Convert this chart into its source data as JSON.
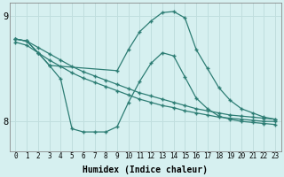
{
  "background_color": "#d6f0f0",
  "line_color": "#2d7d74",
  "grid_color": "#c0dede",
  "xlabel": "Humidex (Indice chaleur)",
  "ylim": [
    7.72,
    9.12
  ],
  "xlim": [
    -0.5,
    23.5
  ],
  "yticks": [
    8,
    9
  ],
  "xticks": [
    0,
    1,
    2,
    3,
    4,
    5,
    6,
    7,
    8,
    9,
    10,
    11,
    12,
    13,
    14,
    15,
    16,
    17,
    18,
    19,
    20,
    21,
    22,
    23
  ],
  "series": [
    {
      "x": [
        0,
        1,
        2,
        3,
        4,
        5,
        6,
        7,
        8,
        9,
        10,
        11,
        12,
        13,
        14,
        15,
        16,
        17,
        18,
        19,
        20,
        21,
        22,
        23
      ],
      "y": [
        8.78,
        8.76,
        8.7,
        8.64,
        8.58,
        8.52,
        8.47,
        8.43,
        8.39,
        8.35,
        8.31,
        8.27,
        8.24,
        8.21,
        8.18,
        8.15,
        8.12,
        8.1,
        8.08,
        8.06,
        8.05,
        8.04,
        8.03,
        8.02
      ]
    },
    {
      "x": [
        0,
        1,
        2,
        3,
        4,
        5,
        6,
        7,
        8,
        9,
        10,
        11,
        12,
        13,
        14,
        15,
        16,
        17,
        18,
        19,
        20,
        21,
        22,
        23
      ],
      "y": [
        8.75,
        8.72,
        8.65,
        8.58,
        8.52,
        8.46,
        8.41,
        8.37,
        8.33,
        8.29,
        8.25,
        8.21,
        8.18,
        8.15,
        8.13,
        8.1,
        8.08,
        8.06,
        8.04,
        8.03,
        8.02,
        8.01,
        8.0,
        8.0
      ]
    },
    {
      "x": [
        0,
        1,
        2,
        3,
        4,
        5,
        6,
        7,
        8,
        9,
        10,
        11,
        12,
        13,
        14,
        15,
        16,
        17,
        18,
        19,
        20,
        21,
        22,
        23
      ],
      "y": [
        8.78,
        8.76,
        8.65,
        8.53,
        8.4,
        7.93,
        7.9,
        7.9,
        7.9,
        7.95,
        8.18,
        8.38,
        8.55,
        8.65,
        8.62,
        8.42,
        8.22,
        8.12,
        8.05,
        8.02,
        8.0,
        7.99,
        7.98,
        7.97
      ]
    },
    {
      "x": [
        0,
        1,
        2,
        3,
        9,
        10,
        11,
        12,
        13,
        14,
        15,
        16,
        17,
        18,
        19,
        20,
        21,
        22,
        23
      ],
      "y": [
        8.78,
        8.76,
        8.65,
        8.53,
        8.48,
        8.68,
        8.85,
        8.95,
        9.03,
        9.04,
        8.98,
        8.68,
        8.5,
        8.32,
        8.2,
        8.12,
        8.08,
        8.04,
        8.02
      ]
    }
  ]
}
